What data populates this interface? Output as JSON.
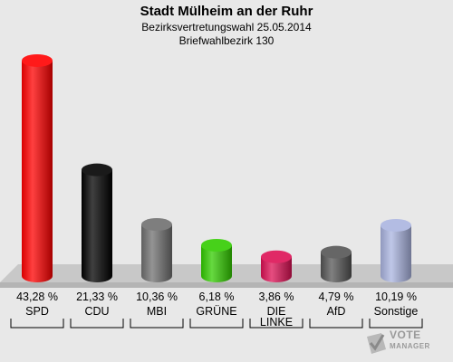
{
  "chart_data": {
    "type": "bar",
    "title": "Stadt Mülheim an der Ruhr",
    "subtitle_line1": "Bezirksvertretungswahl 25.05.2014",
    "subtitle_line2": "Briefwahlbezirk 130",
    "categories": [
      "SPD",
      "CDU",
      "MBI",
      "GRÜNE",
      "DIE LINKE",
      "AfD",
      "Sonstige"
    ],
    "category_lines": [
      [
        "SPD"
      ],
      [
        "CDU"
      ],
      [
        "MBI"
      ],
      [
        "GRÜNE"
      ],
      [
        "DIE",
        "LINKE"
      ],
      [
        "AfD"
      ],
      [
        "Sonstige"
      ]
    ],
    "values": [
      43.28,
      21.33,
      10.36,
      6.18,
      3.86,
      4.79,
      10.19
    ],
    "value_labels": [
      "43,28 %",
      "21,33 %",
      "10,36 %",
      "6,18 %",
      "3,86 %",
      "4,79 %",
      "10,19 %"
    ],
    "colors": [
      "#ff0000",
      "#000000",
      "#707070",
      "#33cc00",
      "#dd1155",
      "#555555",
      "#aab4e0"
    ],
    "grid": false,
    "legend": "none"
  },
  "logo": {
    "line1": "VOTE",
    "line2": "MANAGER"
  }
}
